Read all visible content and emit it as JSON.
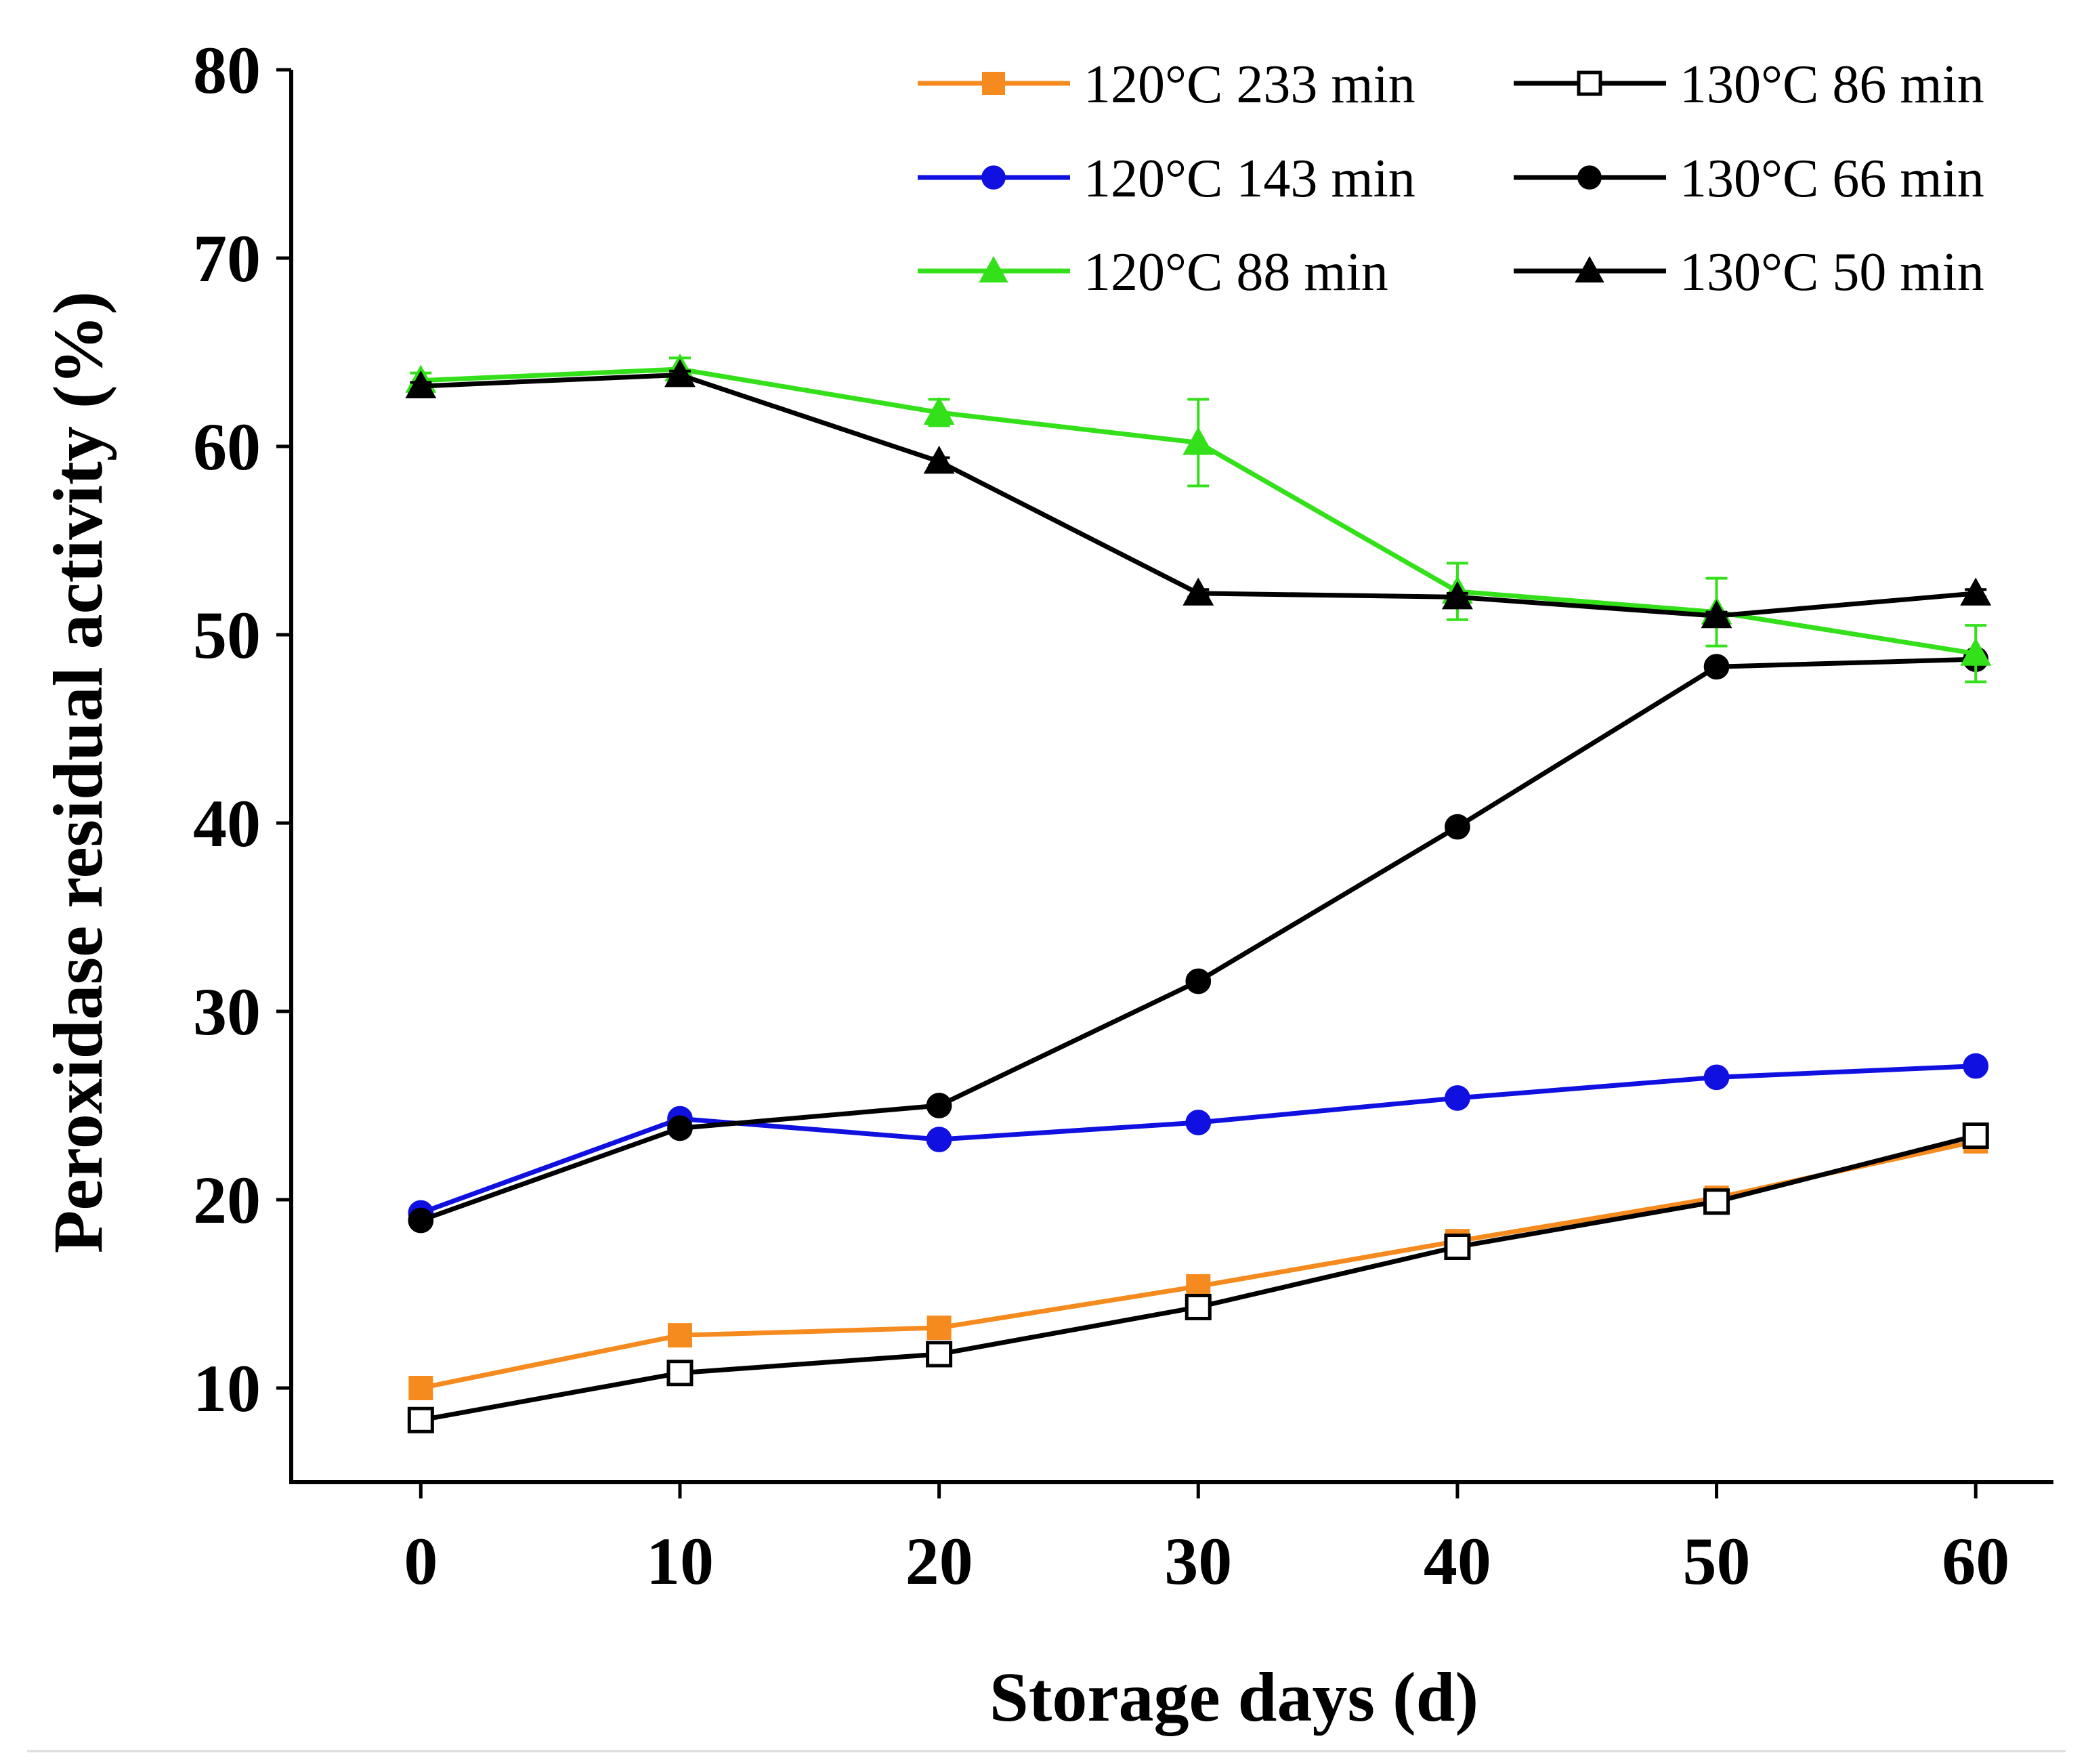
{
  "chart_data": {
    "type": "line",
    "xlabel": "Storage days (d)",
    "ylabel": "Peroxidase residual activity (%)",
    "xlim": [
      -5,
      63
    ],
    "ylim": [
      5,
      80
    ],
    "xticks": [
      0,
      10,
      20,
      30,
      40,
      50,
      60
    ],
    "yticks": [
      10,
      20,
      30,
      40,
      50,
      60,
      70,
      80
    ],
    "x_tick_labels": [
      "0",
      "10",
      "20",
      "30",
      "40",
      "50",
      "60"
    ],
    "y_tick_labels": [
      "10",
      "20",
      "30",
      "40",
      "50",
      "60",
      "70",
      "80"
    ],
    "x": [
      0,
      10,
      20,
      30,
      40,
      50,
      60
    ],
    "grid": false,
    "legend_position": "top-right",
    "series": [
      {
        "name": "120°C 233 min",
        "color": "#f58a1f",
        "marker": "square-filled",
        "values": [
          10.0,
          12.8,
          13.2,
          15.4,
          17.8,
          20.1,
          23.1
        ],
        "errors": [
          0.3,
          0.3,
          0.3,
          0.3,
          0.3,
          0.3,
          0.4
        ]
      },
      {
        "name": "120°C 143 min",
        "color": "#1010e0",
        "marker": "circle-filled",
        "values": [
          19.3,
          24.3,
          23.2,
          24.1,
          25.4,
          26.5,
          27.1
        ],
        "errors": [
          0.3,
          0.3,
          0.3,
          0.3,
          0.3,
          0.3,
          0.3
        ]
      },
      {
        "name": "120°C 88 min",
        "color": "#33e01a",
        "marker": "triangle-filled",
        "values": [
          63.5,
          64.1,
          61.8,
          60.2,
          52.3,
          51.2,
          49.0
        ],
        "errors": [
          0.4,
          0.6,
          0.7,
          2.3,
          1.5,
          1.8,
          1.5
        ]
      },
      {
        "name": "130°C 86 min",
        "color": "#000000",
        "marker": "square-open",
        "values": [
          8.3,
          10.8,
          11.8,
          14.3,
          17.5,
          19.9,
          23.4
        ],
        "errors": [
          0.4,
          0.3,
          0.3,
          0.3,
          0.3,
          0.3,
          0.3
        ]
      },
      {
        "name": "130°C 66 min",
        "color": "#000000",
        "marker": "circle-filled",
        "values": [
          18.9,
          23.8,
          25.0,
          31.6,
          39.8,
          48.3,
          48.7
        ],
        "errors": [
          0.3,
          0.3,
          0.3,
          0.3,
          0.3,
          0.3,
          0.3
        ]
      },
      {
        "name": "130°C 50 min",
        "color": "#000000",
        "marker": "triangle-filled",
        "values": [
          63.2,
          63.8,
          59.2,
          52.2,
          52.0,
          51.0,
          52.2
        ],
        "errors": [
          0.2,
          0.2,
          0.2,
          0.2,
          0.2,
          0.2,
          0.2
        ]
      }
    ]
  }
}
